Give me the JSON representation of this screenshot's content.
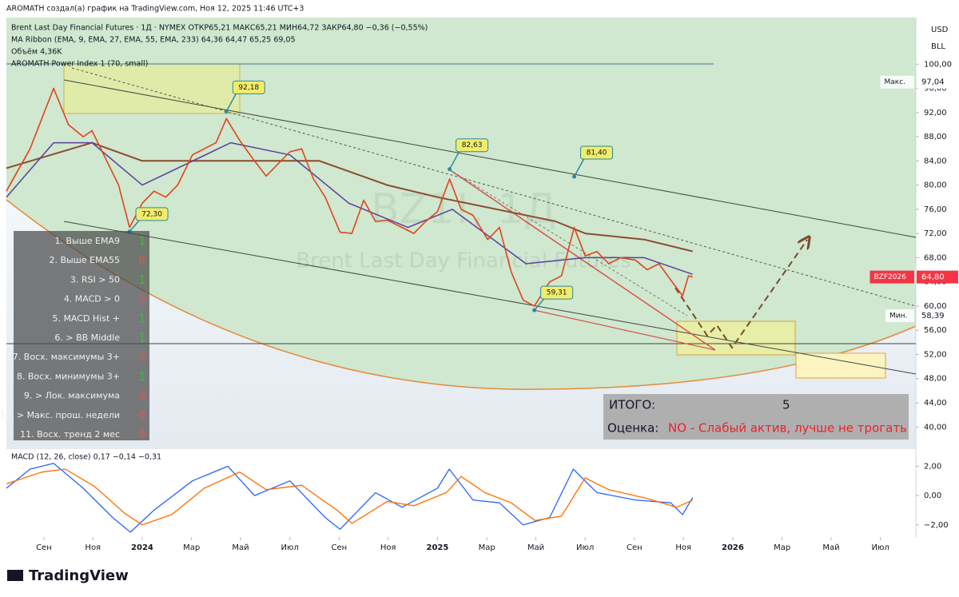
{
  "header": {
    "lines": [
      "AROMATH создал(а) график на TradingView.com, Ноя 12, 2025 11:46 UTC+3",
      "Brent Last Day Financial Futures · 1Д · NYMEX  ОТКР65,21  МАКС65,21  МИН64,72  ЗАКР64,80  −0,36 (−0,55%)",
      "MA Ribbon (EMA, 9, EMA, 27, EMA, 55, EMA, 233)  64,36  64,47  65,25  69,05",
      "Объём  4,36K",
      "AROMATH Power Index 1 (70, small)"
    ],
    "currency": "USD",
    "unit": "BLL"
  },
  "watermark": {
    "symbol": "BZ1!, 1Д",
    "name": "Brent Last Day Financial Futures"
  },
  "chart_data": [
    {
      "type": "line",
      "xlim": [
        2023.54,
        2026.62
      ],
      "ylim": [
        36.6,
        107.7
      ],
      "xticks": [
        {
          "value": 2023.667,
          "label": "Сен"
        },
        {
          "value": 2023.833,
          "label": "Ноя"
        },
        2024,
        {
          "value": 2024.167,
          "label": "Мар"
        },
        {
          "value": 2024.333,
          "label": "Май"
        },
        {
          "value": 2024.5,
          "label": "Июл"
        },
        {
          "value": 2024.667,
          "label": "Сен"
        },
        {
          "value": 2024.833,
          "label": "Ноя"
        },
        2025,
        {
          "value": 2025.167,
          "label": "Мар"
        },
        {
          "value": 2025.333,
          "label": "Май"
        },
        {
          "value": 2025.5,
          "label": "Июл"
        },
        {
          "value": 2025.667,
          "label": "Сен"
        },
        {
          "value": 2025.833,
          "label": "Ноя"
        },
        2026,
        {
          "value": 2026.167,
          "label": "Мар"
        },
        {
          "value": 2026.333,
          "label": "Май"
        },
        {
          "value": 2026.5,
          "label": "Июл"
        }
      ],
      "yticks": [
        {
          "value": 40,
          "label": "40,00"
        },
        {
          "value": 44,
          "label": "44,00"
        },
        {
          "value": 48,
          "label": "48,00"
        },
        {
          "value": 52,
          "label": "52,00"
        },
        {
          "value": 56,
          "label": "56,00"
        },
        {
          "value": 60,
          "label": "60,00"
        },
        {
          "value": 64,
          "label": "64,00"
        },
        {
          "value": 68,
          "label": "68,00"
        },
        {
          "value": 72,
          "label": "72,00"
        },
        {
          "value": 76,
          "label": "76,00"
        },
        {
          "value": 80,
          "label": "80,00"
        },
        {
          "value": 84,
          "label": "84,00"
        },
        {
          "value": 88,
          "label": "88,00"
        },
        {
          "value": 92,
          "label": "92,00"
        },
        {
          "value": 96,
          "label": "96,00"
        },
        {
          "value": 100,
          "label": "100,00"
        }
      ],
      "series": [
        {
          "color": "#8d4a2f",
          "width": 2,
          "x": [
            2023.54,
            2023.83,
            2024.0,
            2024.3,
            2024.6,
            2024.83,
            2025.0,
            2025.4,
            2025.5,
            2025.7,
            2025.864
          ],
          "values": [
            82.8,
            87,
            84,
            84,
            84,
            80,
            78,
            74,
            72,
            71,
            69.05
          ]
        },
        {
          "color": "#5b3f9e",
          "width": 1.5,
          "x": [
            2023.54,
            2023.7,
            2023.83,
            2024.0,
            2024.3,
            2024.5,
            2024.7,
            2024.9,
            2025.05,
            2025.3,
            2025.5,
            2025.7,
            2025.864
          ],
          "values": [
            78,
            87,
            87,
            80,
            87,
            85,
            77,
            73,
            76,
            67,
            68,
            68,
            65.25
          ]
        },
        {
          "color": "#e0441c",
          "width": 1.6,
          "x": [
            2023.54,
            2023.62,
            2023.7,
            2023.75,
            2023.8,
            2023.83,
            2023.88,
            2023.92,
            2023.957,
            2024.0,
            2024.04,
            2024.08,
            2024.12,
            2024.17,
            2024.25,
            2024.285,
            2024.33,
            2024.38,
            2024.42,
            2024.5,
            2024.54,
            2024.58,
            2024.62,
            2024.67,
            2024.71,
            2024.75,
            2024.79,
            2024.83,
            2024.88,
            2024.92,
            2024.96,
            2025.0,
            2025.041,
            2025.08,
            2025.12,
            2025.17,
            2025.21,
            2025.25,
            2025.29,
            2025.328,
            2025.38,
            2025.42,
            2025.463,
            2025.5,
            2025.54,
            2025.58,
            2025.62,
            2025.67,
            2025.71,
            2025.75,
            2025.79,
            2025.83,
            2025.85,
            2025.864
          ],
          "values": [
            79,
            86,
            96,
            90,
            88,
            89,
            84,
            80,
            73,
            77,
            79,
            78,
            80,
            85,
            87,
            91,
            87.4,
            84,
            81.5,
            85.5,
            86,
            81,
            78,
            72.2,
            72,
            77.5,
            74,
            74.2,
            73,
            72,
            74,
            75.6,
            81,
            76,
            75,
            71,
            73,
            65.6,
            61,
            60,
            64,
            65,
            73,
            68.3,
            69,
            67,
            68,
            67.6,
            66,
            67,
            64.3,
            61.7,
            65,
            64.8
          ]
        }
      ],
      "markers": [
        {
          "name": "Макс.",
          "value": 97.04,
          "label": "97,04"
        },
        {
          "name": "Мин.",
          "value": 58.39,
          "label": "58,39"
        },
        {
          "name": "BZF2026",
          "value": 64.8,
          "label": "64,80",
          "color": "#f23645"
        }
      ],
      "annotations": [
        {
          "x": 2024.285,
          "value": 92.18,
          "label": "92,18"
        },
        {
          "x": 2023.957,
          "value": 72.3,
          "label": "72,30"
        },
        {
          "x": 2025.041,
          "value": 82.63,
          "label": "82,63"
        },
        {
          "x": 2025.463,
          "value": 81.4,
          "label": "81,40"
        },
        {
          "x": 2025.328,
          "value": 59.31,
          "label": "59,31"
        }
      ]
    },
    {
      "type": "line",
      "title": "MACD (12, 26, close)  0,17  −0,14  −0,31",
      "xlim": [
        2023.54,
        2026.62
      ],
      "ylim": [
        -2.83,
        3.11
      ],
      "yticks": [
        {
          "value": -2,
          "label": "−2,00"
        },
        {
          "value": 0,
          "label": "0,00"
        },
        {
          "value": 2,
          "label": "2,00"
        }
      ],
      "series": [
        {
          "color": "#2962ff",
          "width": 1.3,
          "x": [
            2023.54,
            2023.62,
            2023.7,
            2023.8,
            2023.9,
            2023.96,
            2024.04,
            2024.17,
            2024.29,
            2024.38,
            2024.5,
            2024.62,
            2024.67,
            2024.79,
            2024.88,
            2025.0,
            2025.04,
            2025.12,
            2025.21,
            2025.29,
            2025.38,
            2025.46,
            2025.54,
            2025.67,
            2025.79,
            2025.83,
            2025.864
          ],
          "values": [
            0.5,
            1.8,
            2.2,
            0.5,
            -1.5,
            -2.5,
            -1.0,
            1.0,
            2.0,
            0.0,
            1.0,
            -1.5,
            -2.3,
            0.2,
            -0.8,
            0.5,
            1.8,
            -0.3,
            -0.5,
            -2.0,
            -1.5,
            1.8,
            0.2,
            -0.3,
            -0.5,
            -1.3,
            -0.14
          ]
        },
        {
          "color": "#ff6d00",
          "width": 1.3,
          "x": [
            2023.54,
            2023.66,
            2023.74,
            2023.84,
            2023.94,
            2024.0,
            2024.1,
            2024.21,
            2024.33,
            2024.42,
            2024.54,
            2024.66,
            2024.71,
            2024.83,
            2024.92,
            2025.03,
            2025.08,
            2025.16,
            2025.25,
            2025.33,
            2025.42,
            2025.5,
            2025.58,
            2025.71,
            2025.81,
            2025.864
          ],
          "values": [
            0.8,
            1.6,
            1.8,
            0.6,
            -1.2,
            -2.0,
            -1.3,
            0.5,
            1.6,
            0.4,
            0.7,
            -1.0,
            -1.9,
            -0.4,
            -0.7,
            0.2,
            1.3,
            0.2,
            -0.5,
            -1.7,
            -1.4,
            1.2,
            0.4,
            -0.2,
            -0.8,
            -0.31
          ]
        }
      ]
    }
  ],
  "checklist": [
    {
      "label": "1. Выше EMA9",
      "value": 1
    },
    {
      "label": "2. Выше EMA55",
      "value": 0
    },
    {
      "label": "3. RSI > 50",
      "value": 1
    },
    {
      "label": "4. MACD > 0",
      "value": 0
    },
    {
      "label": "5. MACD Hist +",
      "value": 1
    },
    {
      "label": "6. > BB Middle",
      "value": 1
    },
    {
      "label": "7. Восх. максимумы 3+",
      "value": 0
    },
    {
      "label": "8. Восх. минимумы 3+",
      "value": 1
    },
    {
      "label": "9. > Лок. максимума",
      "value": 0
    },
    {
      "label": "10. > Макс. прош. недели",
      "value": 0
    },
    {
      "label": "11. Восх. тренд 2 мес",
      "value": 0
    }
  ],
  "summary": {
    "total_label": "ИТОГО:",
    "total": 5,
    "rating_label": "Оценка:",
    "rating": "NO - Слабый актив, лучше не трогать"
  },
  "footer": {
    "brand": "TradingView"
  }
}
